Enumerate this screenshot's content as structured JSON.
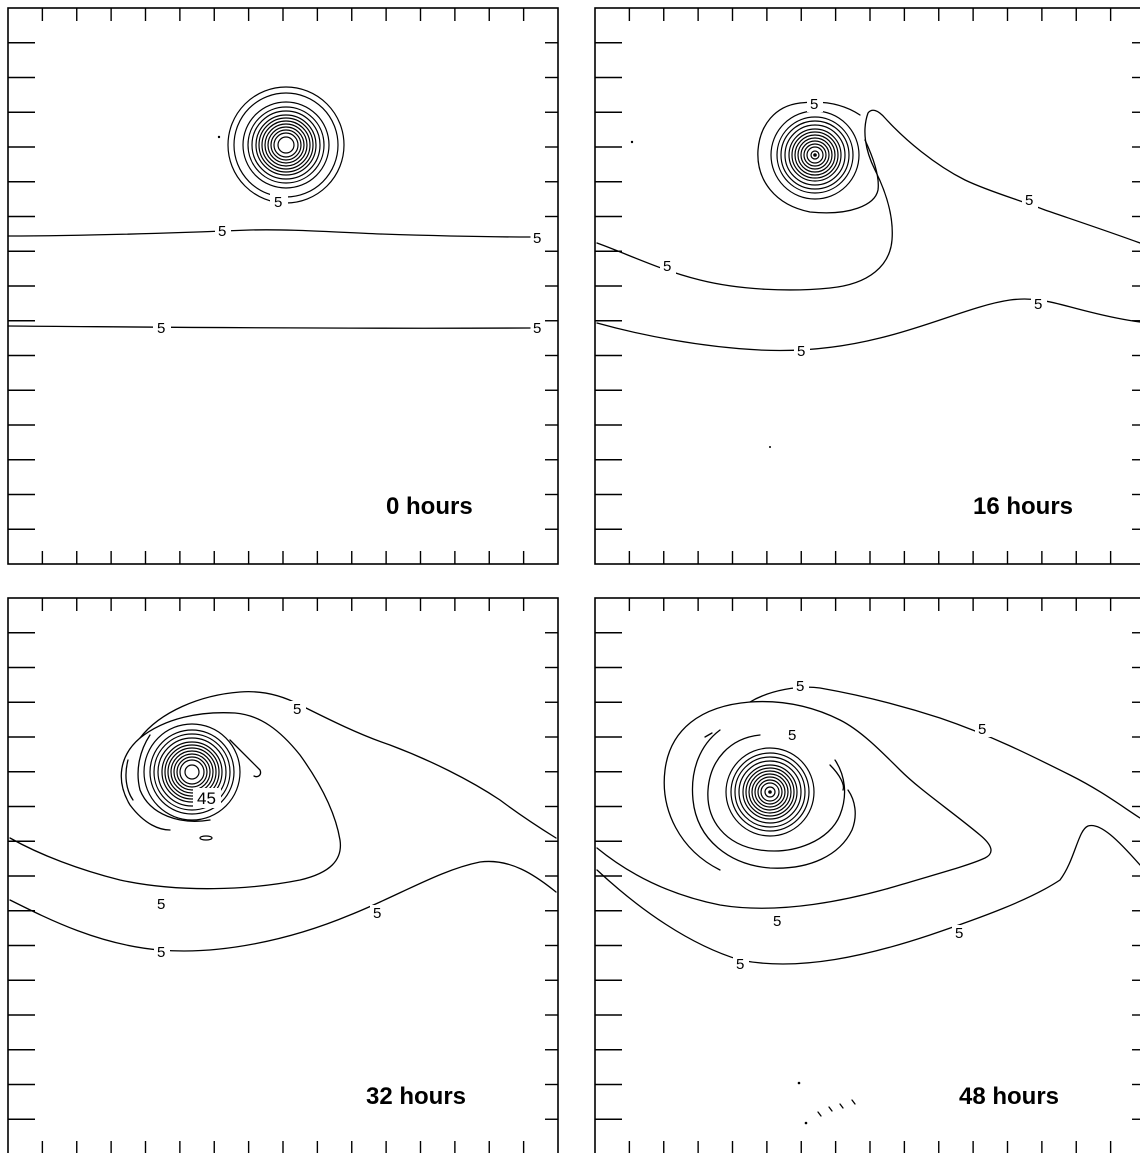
{
  "panels": [
    {
      "time_label": "0 hours",
      "contour_labels": [
        "5",
        "5",
        "5",
        "5",
        "5"
      ]
    },
    {
      "time_label": "16 hours",
      "contour_labels": [
        "5",
        "5",
        "5",
        "5",
        "5"
      ]
    },
    {
      "time_label": "32 hours",
      "contour_labels": [
        "5",
        "45",
        "5",
        "5",
        "5"
      ]
    },
    {
      "time_label": "48 hours",
      "contour_labels": [
        "5",
        "5",
        "5",
        "5",
        "5",
        "5"
      ]
    }
  ]
}
